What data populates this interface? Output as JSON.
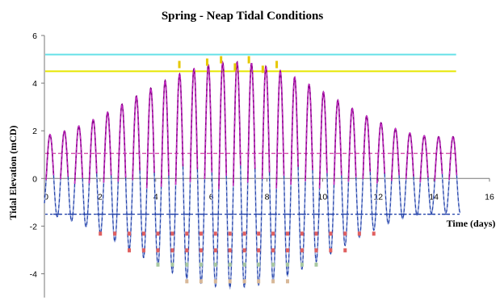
{
  "chart_data": {
    "type": "line",
    "title": "Spring - Neap Tidal Conditions",
    "xlabel": "Time (days)",
    "ylabel": "Tidal Elevation (mCD)",
    "xlim": [
      0,
      16
    ],
    "ylim": [
      -5,
      6
    ],
    "xticks": [
      "0",
      "2",
      "4",
      "6",
      "8",
      "10",
      "12",
      "14",
      "16"
    ],
    "yticks": [
      "-4",
      "-2",
      "0",
      "2",
      "4",
      "6"
    ],
    "grid": false,
    "legend": "none",
    "model": {
      "period_days": 0.5175,
      "mean_level": 0.15,
      "spring_day": 6.8,
      "neap_amplitude": 1.0,
      "spring_amplitude": 4.3,
      "spring_neap_half_period_days": 7.4
    },
    "series": [
      {
        "color": "#8b008b",
        "style": "solid",
        "values_ref": "high-water envelope 1.6 to 5.1 mCD"
      },
      {
        "color": "#cc33cc",
        "style": "dashed",
        "values_ref": "high-water envelope"
      },
      {
        "color": "#1f3fa8",
        "style": "dashed",
        "values_ref": "low-water envelope -1.6 to -4.7 mCD"
      },
      {
        "color": "#8fa0d8",
        "style": "solid",
        "values_ref": "low-water envelope"
      }
    ],
    "high_markers": [
      {
        "x": 4.85,
        "y": 4.9,
        "color": "#e6c800"
      },
      {
        "x": 5.85,
        "y": 5.0,
        "color": "#e6c800"
      },
      {
        "x": 6.35,
        "y": 5.1,
        "color": "#e6c800"
      },
      {
        "x": 6.85,
        "y": 4.8,
        "color": "#e6c800"
      },
      {
        "x": 7.35,
        "y": 5.1,
        "color": "#e6c800"
      },
      {
        "x": 7.85,
        "y": 4.7,
        "color": "#e6c800"
      },
      {
        "x": 8.35,
        "y": 4.9,
        "color": "#e6c800"
      }
    ],
    "reference_lines": [
      {
        "y": 5.2,
        "color": "#66e0e8",
        "style": "solid"
      },
      {
        "y": 4.5,
        "color": "#e6e600",
        "style": "solid"
      },
      {
        "y": 1.05,
        "color": "#d040a0",
        "style": "dashed"
      },
      {
        "y": -1.5,
        "color": "#1f3fa8",
        "style": "dashed-short"
      }
    ],
    "low_level_markers": [
      {
        "y": -2.3,
        "color": "#e06060",
        "x_range": [
          1.0,
          13.0
        ]
      },
      {
        "y": -3.0,
        "color": "#e06060",
        "x_range": [
          2.6,
          11.0
        ]
      },
      {
        "y": -3.6,
        "color": "#a8c8a0",
        "x_range": [
          3.4,
          10.2
        ]
      },
      {
        "y": -4.3,
        "color": "#d8b898",
        "x_range": [
          4.4,
          9.0
        ]
      }
    ]
  }
}
